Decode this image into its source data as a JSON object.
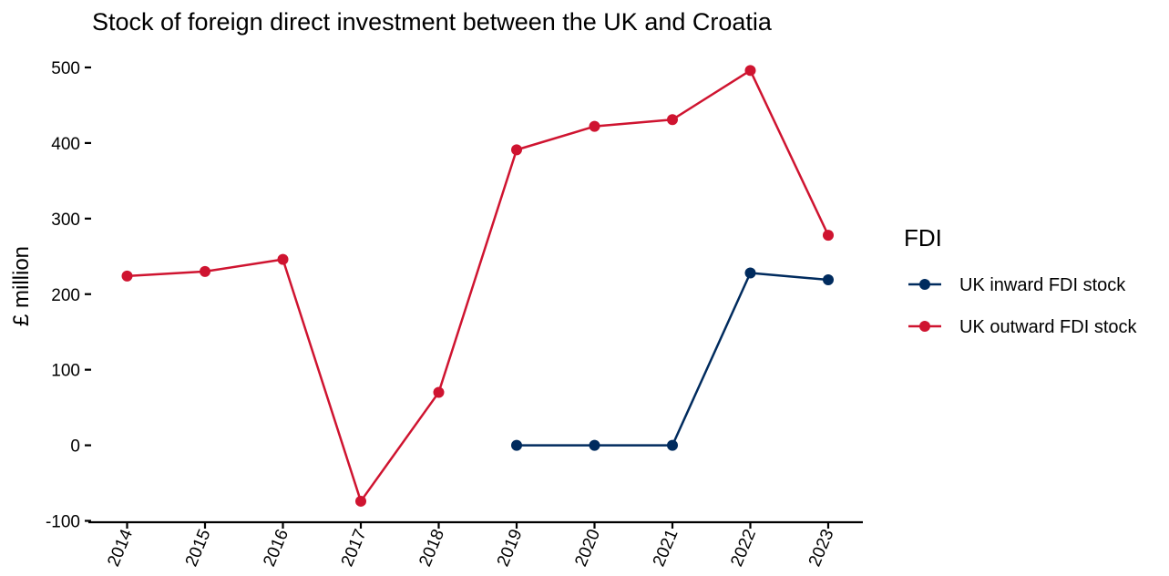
{
  "chart_data": {
    "type": "line",
    "title": "Stock of foreign direct investment between the UK and Croatia",
    "xlabel": "",
    "ylabel": "£ million",
    "x": [
      "2014",
      "2015",
      "2016",
      "2017",
      "2018",
      "2019",
      "2020",
      "2021",
      "2022",
      "2023"
    ],
    "ylim": [
      -100,
      500
    ],
    "yticks": [
      -100,
      0,
      100,
      200,
      300,
      400,
      500
    ],
    "grid": false,
    "legend": {
      "title": "FDI",
      "position": "right"
    },
    "series": [
      {
        "name": "UK inward FDI stock",
        "color": "#002b5e",
        "values": [
          null,
          null,
          null,
          null,
          null,
          0,
          0,
          0,
          228,
          219
        ]
      },
      {
        "name": "UK outward FDI stock",
        "color": "#cf1430",
        "values": [
          224,
          230,
          246,
          -74,
          70,
          391,
          422,
          431,
          496,
          278
        ]
      }
    ]
  }
}
